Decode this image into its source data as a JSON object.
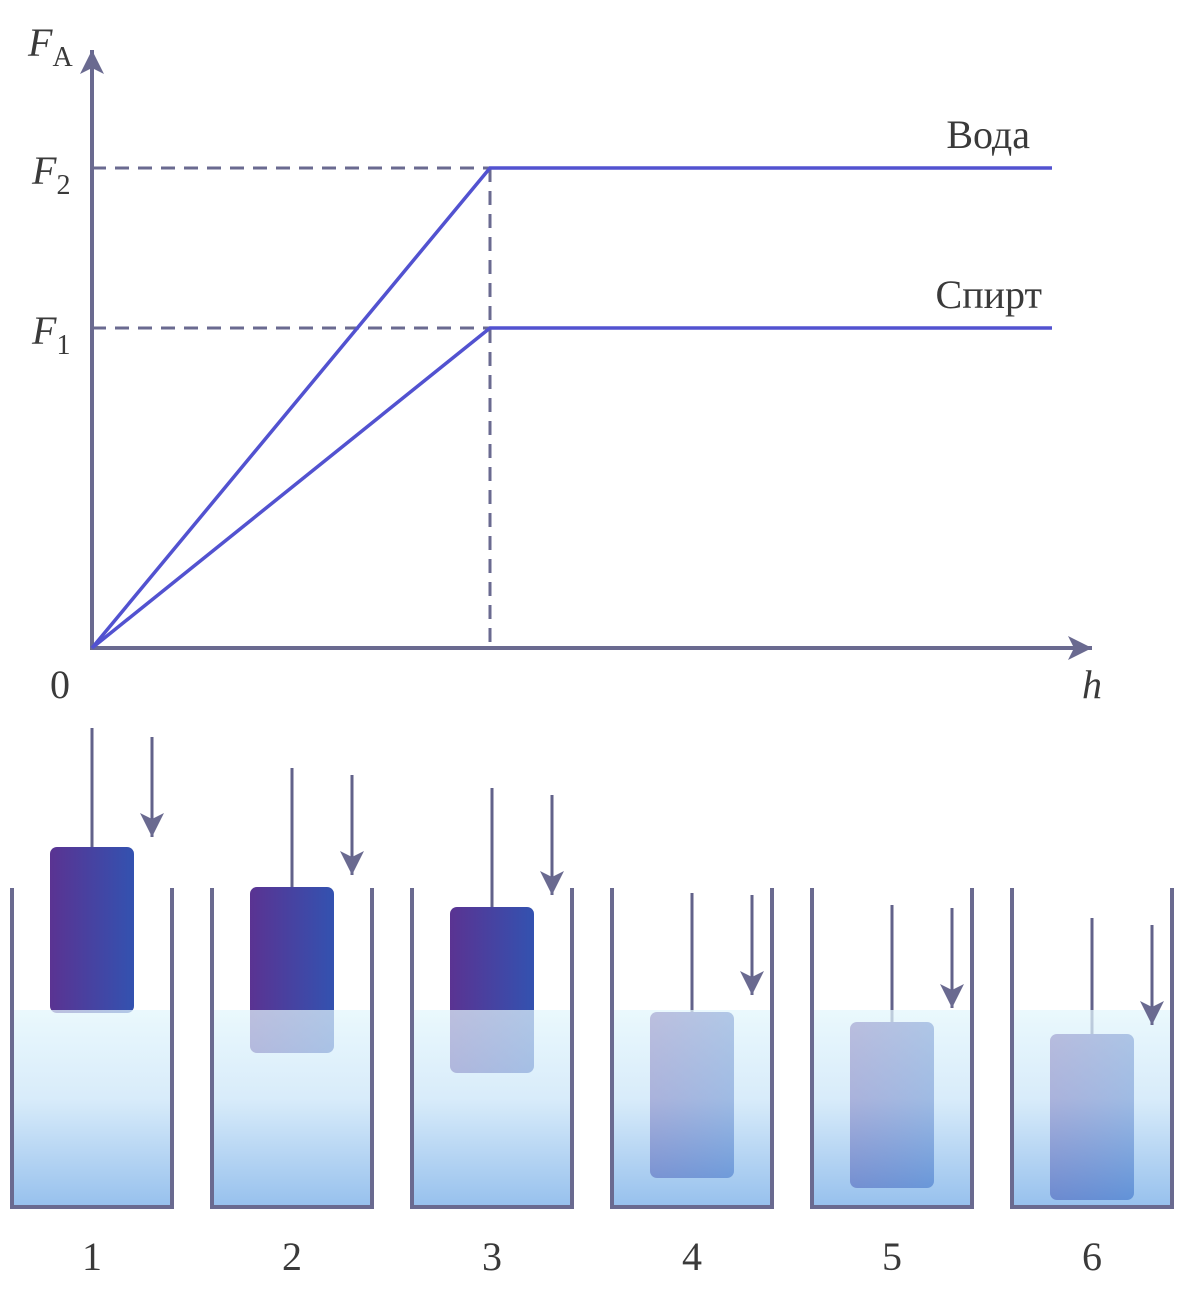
{
  "graph": {
    "y_axis_label": {
      "symbol": "F",
      "subscript": "A"
    },
    "x_axis_label": "h",
    "origin_label": "0",
    "levels": [
      {
        "symbol": "F",
        "subscript": "2"
      },
      {
        "symbol": "F",
        "subscript": "1"
      }
    ],
    "lines": [
      {
        "label": "Вода"
      },
      {
        "label": "Спирт"
      }
    ]
  },
  "beakers": [
    "1",
    "2",
    "3",
    "4",
    "5",
    "6"
  ]
}
